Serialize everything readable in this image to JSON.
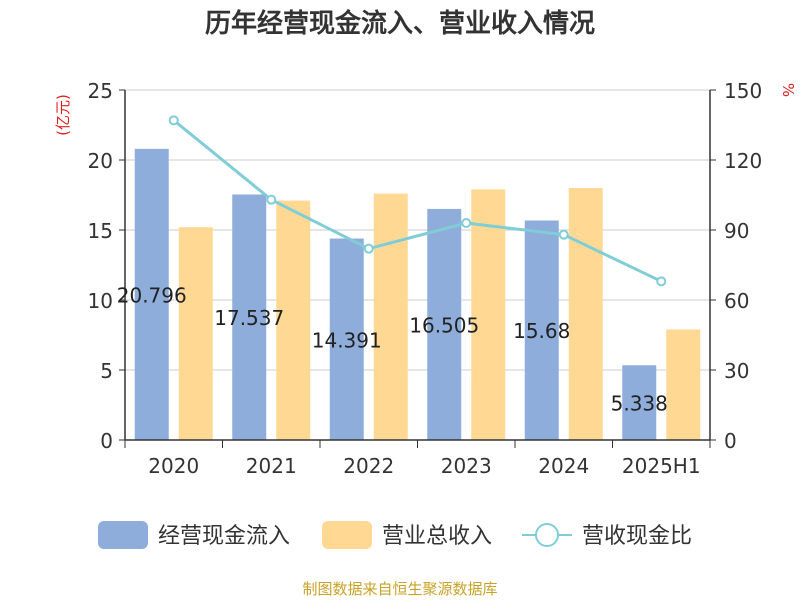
{
  "chart_data": {
    "type": "bar",
    "title": "历年经营现金流入、营业收入情况",
    "left_unit": "(亿元)",
    "right_unit": "%",
    "categories": [
      "2020",
      "2021",
      "2022",
      "2023",
      "2024",
      "2025H1"
    ],
    "ylim": [
      0,
      25
    ],
    "yticks": [
      "0",
      "5",
      "10",
      "15",
      "20",
      "25"
    ],
    "y2lim": [
      0,
      150
    ],
    "y2ticks": [
      "0",
      "30",
      "60",
      "90",
      "120",
      "150"
    ],
    "grid": true,
    "legend_position": "bottom",
    "series": [
      {
        "name": "经营现金流入",
        "type": "bar",
        "axis": "left",
        "color": "#8eaddb",
        "values": [
          20.796,
          17.537,
          14.391,
          16.505,
          15.68,
          5.338
        ],
        "labels": [
          "20.796",
          "17.537",
          "14.391",
          "16.505",
          "15.68",
          "5.338"
        ]
      },
      {
        "name": "营业总收入",
        "type": "bar",
        "axis": "left",
        "color": "#ffd994",
        "values": [
          15.2,
          17.1,
          17.6,
          17.9,
          18.0,
          7.9
        ]
      },
      {
        "name": "营收现金比",
        "type": "line",
        "axis": "right",
        "color": "#7fcdd6",
        "values": [
          137,
          103,
          82,
          93,
          88,
          68
        ]
      }
    ]
  },
  "source_text": "制图数据来自恒生聚源数据库"
}
